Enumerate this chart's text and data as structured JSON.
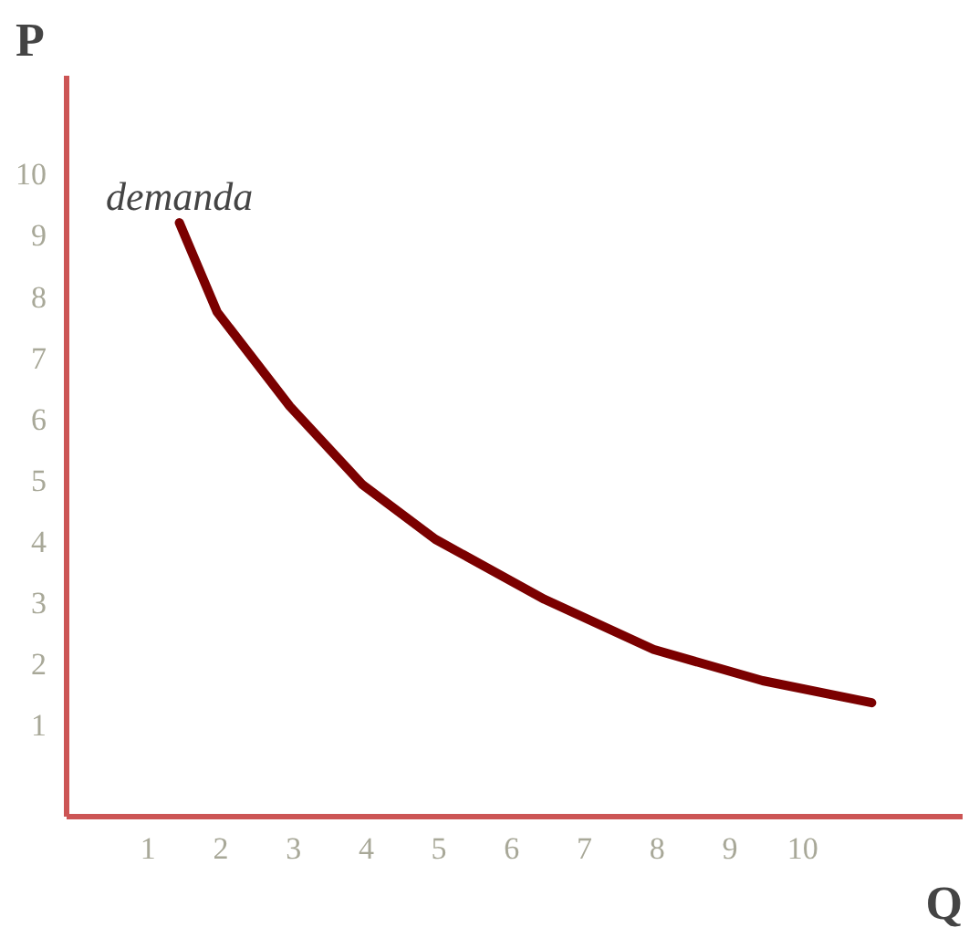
{
  "chart_data": {
    "type": "line",
    "xlabel": "Q",
    "ylabel": "P",
    "x": [
      1.43,
      1.95,
      2.95,
      3.95,
      4.95,
      6.45,
      7.95,
      9.45,
      10.95
    ],
    "series": [
      {
        "color": "#7b0000",
        "values": [
          9.2,
          7.74,
          6.2,
          4.92,
          4.03,
          3.05,
          2.23,
          1.72,
          1.36
        ]
      }
    ],
    "annotations": [
      {
        "text": "demanda",
        "x": 1.43,
        "y": 9.2
      }
    ],
    "xlim": [
      -0.12,
      12.2
    ],
    "ylim": [
      -0.5,
      11.6
    ],
    "xticks": [
      1,
      2,
      3,
      4,
      5,
      6,
      7,
      8,
      9,
      10
    ],
    "yticks": [
      1,
      2,
      3,
      4,
      5,
      6,
      7,
      8,
      9,
      10
    ],
    "grid": false,
    "marker": "none",
    "line_style": "solid"
  }
}
